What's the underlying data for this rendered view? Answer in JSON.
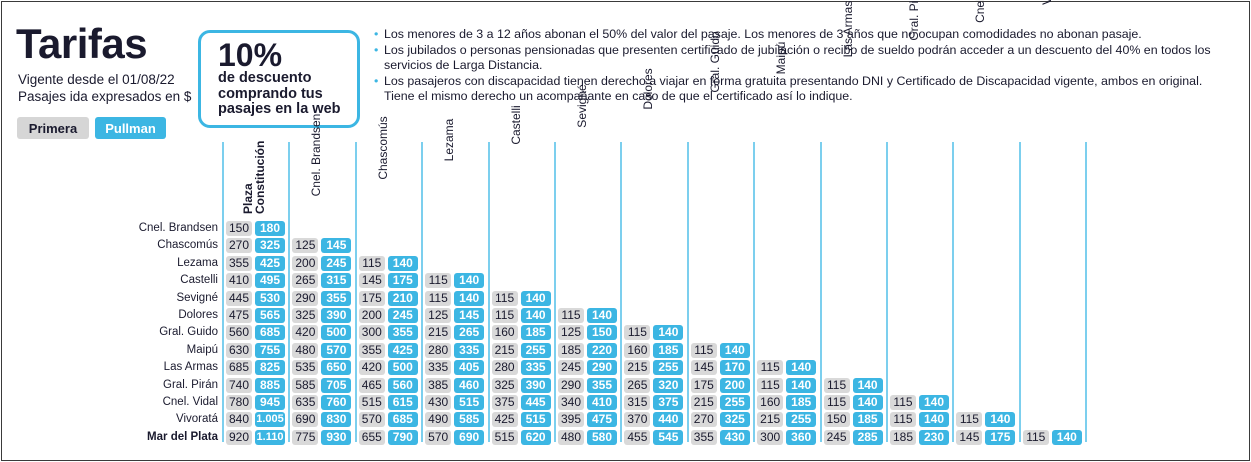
{
  "header": {
    "title": "Tarifas",
    "vigente": "Vigente desde el 01/08/22",
    "pasajes": "Pasajes ida expresados en $"
  },
  "tabs": {
    "primera": "Primera",
    "pullman": "Pullman"
  },
  "promo": {
    "percent": "10%",
    "text": "de descuento comprando tus pasajes en la web"
  },
  "notes": [
    "Los menores de 3 a 12 años abonan el 50% del valor del pasaje. Los menores de 3 años que no ocupan comodidades no abonan pasaje.",
    "Los jubilados o personas pensionadas que presenten certificado de jubilación o recibo de sueldo podrán acceder a un descuento del 40% en todos los servicios de Larga Distancia.",
    "Los pasajeros con discapacidad tienen derecho a viajar en forma gratuita presentando DNI y Certificado de Discapacidad vigente, ambos en original. Tiene el mismo derecho un acompañante en caso de que el certificado así lo indique."
  ],
  "columns": [
    "Plaza Constitución",
    "Cnel. Brandsen",
    "Chascomús",
    "Lezama",
    "Castelli",
    "Sevigné",
    "Dolores",
    "Gral. Guido",
    "Maipú",
    "Las Armas",
    "Gral. Pirán",
    "Cnel. Vidal",
    "Vivoratá"
  ],
  "rows": [
    {
      "label": "Cnel. Brandsen",
      "prices": [
        [
          "150",
          "180"
        ]
      ]
    },
    {
      "label": "Chascomús",
      "prices": [
        [
          "270",
          "325"
        ],
        [
          "125",
          "145"
        ]
      ]
    },
    {
      "label": "Lezama",
      "prices": [
        [
          "355",
          "425"
        ],
        [
          "200",
          "245"
        ],
        [
          "115",
          "140"
        ]
      ]
    },
    {
      "label": "Castelli",
      "prices": [
        [
          "410",
          "495"
        ],
        [
          "265",
          "315"
        ],
        [
          "145",
          "175"
        ],
        [
          "115",
          "140"
        ]
      ]
    },
    {
      "label": "Sevigné",
      "prices": [
        [
          "445",
          "530"
        ],
        [
          "290",
          "355"
        ],
        [
          "175",
          "210"
        ],
        [
          "115",
          "140"
        ],
        [
          "115",
          "140"
        ]
      ]
    },
    {
      "label": "Dolores",
      "prices": [
        [
          "475",
          "565"
        ],
        [
          "325",
          "390"
        ],
        [
          "200",
          "245"
        ],
        [
          "125",
          "145"
        ],
        [
          "115",
          "140"
        ],
        [
          "115",
          "140"
        ]
      ]
    },
    {
      "label": "Gral. Guido",
      "prices": [
        [
          "560",
          "685"
        ],
        [
          "420",
          "500"
        ],
        [
          "300",
          "355"
        ],
        [
          "215",
          "265"
        ],
        [
          "160",
          "185"
        ],
        [
          "125",
          "150"
        ],
        [
          "115",
          "140"
        ]
      ]
    },
    {
      "label": "Maipú",
      "prices": [
        [
          "630",
          "755"
        ],
        [
          "480",
          "570"
        ],
        [
          "355",
          "425"
        ],
        [
          "280",
          "335"
        ],
        [
          "215",
          "255"
        ],
        [
          "185",
          "220"
        ],
        [
          "160",
          "185"
        ],
        [
          "115",
          "140"
        ]
      ]
    },
    {
      "label": "Las Armas",
      "prices": [
        [
          "685",
          "825"
        ],
        [
          "535",
          "650"
        ],
        [
          "420",
          "500"
        ],
        [
          "335",
          "405"
        ],
        [
          "280",
          "335"
        ],
        [
          "245",
          "290"
        ],
        [
          "215",
          "255"
        ],
        [
          "145",
          "170"
        ],
        [
          "115",
          "140"
        ]
      ]
    },
    {
      "label": "Gral. Pirán",
      "prices": [
        [
          "740",
          "885"
        ],
        [
          "585",
          "705"
        ],
        [
          "465",
          "560"
        ],
        [
          "385",
          "460"
        ],
        [
          "325",
          "390"
        ],
        [
          "290",
          "355"
        ],
        [
          "265",
          "320"
        ],
        [
          "175",
          "200"
        ],
        [
          "115",
          "140"
        ],
        [
          "115",
          "140"
        ]
      ]
    },
    {
      "label": "Cnel. Vidal",
      "prices": [
        [
          "780",
          "945"
        ],
        [
          "635",
          "760"
        ],
        [
          "515",
          "615"
        ],
        [
          "430",
          "515"
        ],
        [
          "375",
          "445"
        ],
        [
          "340",
          "410"
        ],
        [
          "315",
          "375"
        ],
        [
          "215",
          "255"
        ],
        [
          "160",
          "185"
        ],
        [
          "115",
          "140"
        ],
        [
          "115",
          "140"
        ]
      ]
    },
    {
      "label": "Vivoratá",
      "prices": [
        [
          "840",
          "1.005"
        ],
        [
          "690",
          "830"
        ],
        [
          "570",
          "685"
        ],
        [
          "490",
          "585"
        ],
        [
          "425",
          "515"
        ],
        [
          "395",
          "475"
        ],
        [
          "370",
          "440"
        ],
        [
          "270",
          "325"
        ],
        [
          "215",
          "255"
        ],
        [
          "150",
          "185"
        ],
        [
          "115",
          "140"
        ],
        [
          "115",
          "140"
        ]
      ]
    },
    {
      "label": "Mar del Plata",
      "bold": true,
      "prices": [
        [
          "920",
          "1.110"
        ],
        [
          "775",
          "930"
        ],
        [
          "655",
          "790"
        ],
        [
          "570",
          "690"
        ],
        [
          "515",
          "620"
        ],
        [
          "480",
          "580"
        ],
        [
          "455",
          "545"
        ],
        [
          "355",
          "430"
        ],
        [
          "300",
          "360"
        ],
        [
          "245",
          "285"
        ],
        [
          "185",
          "230"
        ],
        [
          "145",
          "175"
        ],
        [
          "115",
          "140"
        ]
      ]
    }
  ],
  "colors": {
    "primera": "#d9d9d9",
    "pullman": "#3cb6e3",
    "text": "#1a1a2e"
  }
}
